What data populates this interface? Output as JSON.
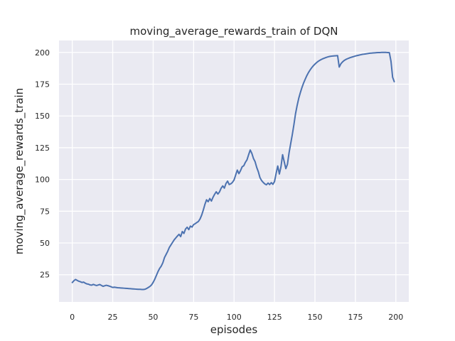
{
  "chart_data": {
    "type": "line",
    "title": "moving_average_rewards_train of DQN",
    "xlabel": "episodes",
    "ylabel": "moving_average_rewards_train",
    "x_ticks": [
      0,
      25,
      50,
      75,
      100,
      125,
      150,
      175,
      200
    ],
    "y_ticks": [
      25,
      50,
      75,
      100,
      125,
      150,
      175,
      200
    ],
    "xlim": [
      -8.2,
      208.0
    ],
    "ylim": [
      3.6,
      209.4
    ],
    "grid": true,
    "legend": null,
    "style": {
      "figure_bg": "#ffffff",
      "plot_bg": "#eaeaf2",
      "grid_color": "#ffffff",
      "line_color": "#4c72b0",
      "text_color": "#262626"
    },
    "series": [
      {
        "name": "moving_average_rewards_train",
        "x_is_index": true,
        "values": [
          18.9,
          20.3,
          21.3,
          20.6,
          19.9,
          19.5,
          18.9,
          19.2,
          18.4,
          17.8,
          17.6,
          17.0,
          16.8,
          17.4,
          16.9,
          16.5,
          16.9,
          17.3,
          16.6,
          15.9,
          16.3,
          16.7,
          16.4,
          16.0,
          15.5,
          15.0,
          15.2,
          15.0,
          14.8,
          14.7,
          14.6,
          14.5,
          14.4,
          14.3,
          14.2,
          14.1,
          14.0,
          13.9,
          13.8,
          13.7,
          13.6,
          13.5,
          13.5,
          13.4,
          13.4,
          13.6,
          14.2,
          15.0,
          15.8,
          17.0,
          19.0,
          21.5,
          24.5,
          27.5,
          30.0,
          31.8,
          34.5,
          38.5,
          41.0,
          43.5,
          46.5,
          48.5,
          50.5,
          52.5,
          54.0,
          55.5,
          56.8,
          55.0,
          59.0,
          57.5,
          61.0,
          62.4,
          60.5,
          63.3,
          62.5,
          64.5,
          65.2,
          66.1,
          67.0,
          69.0,
          72.0,
          76.0,
          80.5,
          84.0,
          82.5,
          85.0,
          83.0,
          86.0,
          88.4,
          90.3,
          88.5,
          90.2,
          93.1,
          94.9,
          93.2,
          96.8,
          98.7,
          96.0,
          96.6,
          97.7,
          99.6,
          103.5,
          107.4,
          104.6,
          107.0,
          110.0,
          110.8,
          113.5,
          115.5,
          119.5,
          123.2,
          120.5,
          116.5,
          114.0,
          109.5,
          106.1,
          101.5,
          99.2,
          97.7,
          96.5,
          95.8,
          97.2,
          96.0,
          97.5,
          96.2,
          98.3,
          104.8,
          110.6,
          104.3,
          110.0,
          119.5,
          114.0,
          108.5,
          112.0,
          121.0,
          128.2,
          135.3,
          143.2,
          151.8,
          158.3,
          164.0,
          168.5,
          172.5,
          176.0,
          179.0,
          181.8,
          184.2,
          186.2,
          188.0,
          189.5,
          190.8,
          192.0,
          193.0,
          193.8,
          194.5,
          195.1,
          195.6,
          196.1,
          196.5,
          196.8,
          197.0,
          197.2,
          197.3,
          197.4,
          197.5,
          188.5,
          191.0,
          192.5,
          193.6,
          194.4,
          195.0,
          195.5,
          196.0,
          196.4,
          196.8,
          197.2,
          197.5,
          197.8,
          198.1,
          198.4,
          198.6,
          198.8,
          199.0,
          199.2,
          199.4,
          199.5,
          199.6,
          199.7,
          199.8,
          199.9,
          199.9,
          200.0,
          200.0,
          200.0,
          200.0,
          199.9,
          199.8,
          193.0,
          180.5,
          177.0
        ]
      }
    ]
  }
}
